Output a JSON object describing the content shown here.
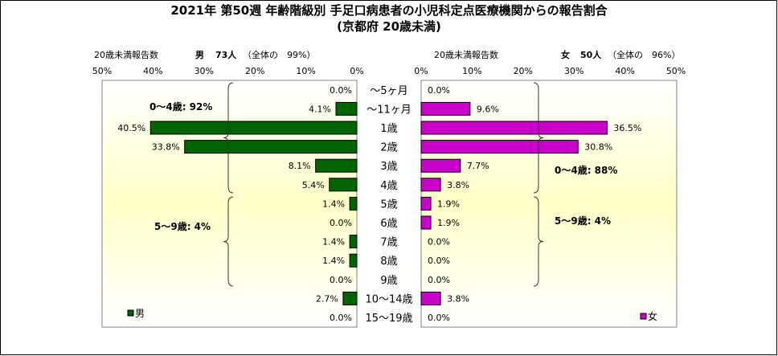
{
  "title_line1": "2021年 第50週 年齢階級別 手足口病患者の小児科定点医療機関からの報告割合",
  "title_line2": "(京都府 20歳未満)",
  "male_header": {
    "label": "20歳未満報告数",
    "sex": "男",
    "count": "73人",
    "share": "（全体の　99%）"
  },
  "female_header": {
    "label": "20歳未満報告数",
    "sex": "女",
    "count": "50人",
    "share": "（全体の　96%）"
  },
  "chart_data": {
    "type": "bar",
    "orientation": "horizontal-butterfly",
    "categories": [
      "～5ヶ月",
      "～11ヶ月",
      "1歳",
      "2歳",
      "3歳",
      "4歳",
      "5歳",
      "6歳",
      "7歳",
      "8歳",
      "9歳",
      "10～14歳",
      "15～19歳"
    ],
    "series": [
      {
        "name": "男",
        "color": "#006400",
        "values": [
          0.0,
          4.1,
          40.5,
          33.8,
          8.1,
          5.4,
          1.4,
          0.0,
          1.4,
          1.4,
          0.0,
          2.7,
          0.0
        ],
        "labels": [
          "0.0%",
          "4.1%",
          "40.5%",
          "33.8%",
          "8.1%",
          "5.4%",
          "1.4%",
          "0.0%",
          "1.4%",
          "1.4%",
          "0.0%",
          "2.7%",
          "0.0%"
        ]
      },
      {
        "name": "女",
        "color": "#cc00cc",
        "values": [
          0.0,
          9.6,
          36.5,
          30.8,
          7.7,
          3.8,
          1.9,
          1.9,
          0.0,
          0.0,
          0.0,
          3.8,
          0.0
        ],
        "labels": [
          "0.0%",
          "9.6%",
          "36.5%",
          "30.8%",
          "7.7%",
          "3.8%",
          "1.9%",
          "1.9%",
          "0.0%",
          "0.0%",
          "0.0%",
          "3.8%",
          "0.0%"
        ]
      }
    ],
    "x_ticks": [
      "0%",
      "10%",
      "20%",
      "30%",
      "40%",
      "50%"
    ],
    "xlim": [
      0,
      50
    ],
    "annotations": {
      "male_0_4": "0～4歳: 92%",
      "male_5_9": "5～9歳: 4%",
      "female_0_4": "0～4歳: 88%",
      "female_5_9": "5～9歳: 4%"
    },
    "legend": [
      "男",
      "女"
    ],
    "legend_placement": "bottom-left / bottom-right"
  }
}
